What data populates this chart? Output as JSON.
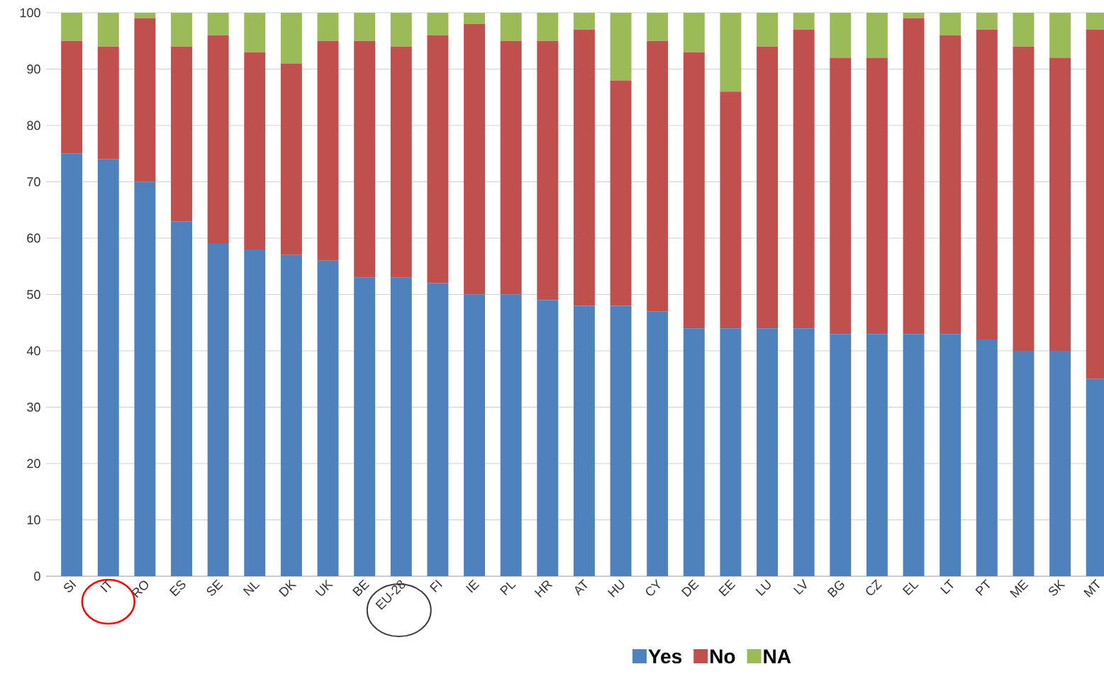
{
  "chart_data": {
    "type": "bar",
    "stacked": true,
    "categories": [
      "SI",
      "IT",
      "RO",
      "ES",
      "SE",
      "NL",
      "DK",
      "UK",
      "BE",
      "EU-28",
      "FI",
      "IE",
      "PL",
      "HR",
      "AT",
      "HU",
      "CY",
      "DE",
      "EE",
      "LU",
      "LV",
      "BG",
      "CZ",
      "EL",
      "LT",
      "PT",
      "ME",
      "SK",
      "MT"
    ],
    "series": [
      {
        "name": "Yes",
        "color": "#4f81bd",
        "values": [
          75,
          74,
          70,
          63,
          59,
          58,
          57,
          56,
          53,
          53,
          52,
          50,
          50,
          49,
          48,
          48,
          47,
          44,
          44,
          44,
          44,
          43,
          43,
          43,
          43,
          42,
          40,
          40,
          35
        ]
      },
      {
        "name": "No",
        "color": "#c0504d",
        "values": [
          20,
          20,
          29,
          31,
          37,
          35,
          34,
          39,
          42,
          41,
          44,
          48,
          45,
          46,
          49,
          40,
          48,
          49,
          42,
          50,
          53,
          49,
          49,
          56,
          53,
          55,
          54,
          52,
          62
        ]
      },
      {
        "name": "NA",
        "color": "#9bbb59",
        "values": [
          5,
          6,
          1,
          6,
          4,
          7,
          9,
          5,
          5,
          6,
          4,
          2,
          5,
          5,
          3,
          12,
          5,
          7,
          14,
          6,
          3,
          8,
          8,
          1,
          4,
          3,
          6,
          8,
          3
        ]
      }
    ],
    "ylim": [
      0,
      100
    ],
    "yticks": [
      0,
      10,
      20,
      30,
      40,
      50,
      60,
      70,
      80,
      90,
      100
    ],
    "grid": "y",
    "legend": "bottom"
  }
}
